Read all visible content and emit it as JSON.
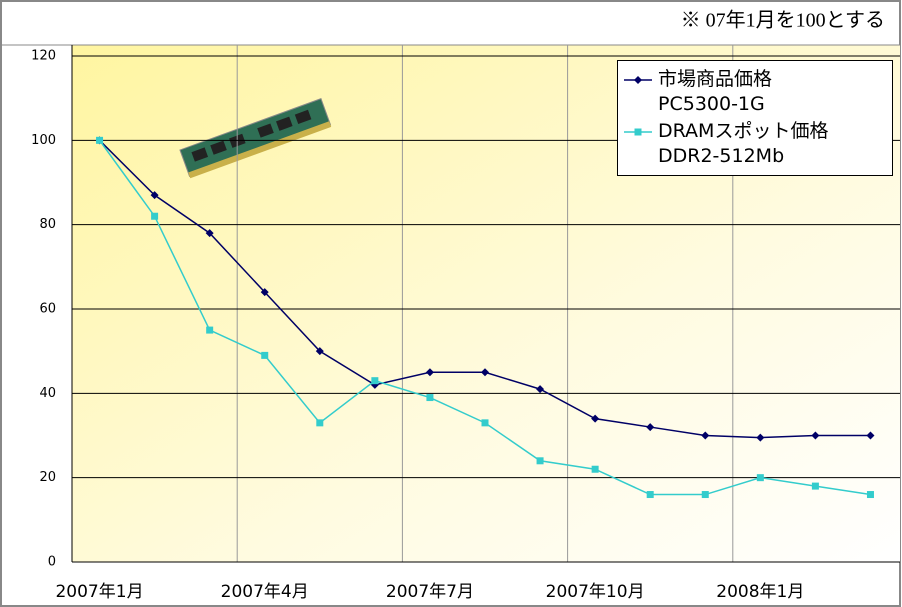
{
  "chart_data": {
    "type": "line",
    "note": "※ 07年1月を100とする",
    "categories": [
      "2007年1月",
      null,
      null,
      "2007年4月",
      null,
      null,
      "2007年7月",
      null,
      null,
      "2007年10月",
      null,
      null,
      "2008年1月",
      null,
      null
    ],
    "series": [
      {
        "name": "市場商品価格\nPC5300-1G",
        "color": "#000066",
        "marker": "diamond",
        "values": [
          100,
          87,
          78,
          64,
          50,
          42,
          45,
          45,
          41,
          34,
          32,
          30,
          29.5,
          30,
          30
        ]
      },
      {
        "name": "DRAMスポット価格\nDDR2-512Mb",
        "color": "#33cccc",
        "marker": "square",
        "values": [
          100,
          82,
          55,
          49,
          33,
          43,
          39,
          33,
          24,
          22,
          16,
          16,
          20,
          18,
          16
        ]
      }
    ],
    "ylim": [
      0,
      120
    ],
    "yticks": [
      0,
      20,
      40,
      60,
      80,
      100,
      120
    ],
    "grid": true,
    "legend": "top-right"
  }
}
